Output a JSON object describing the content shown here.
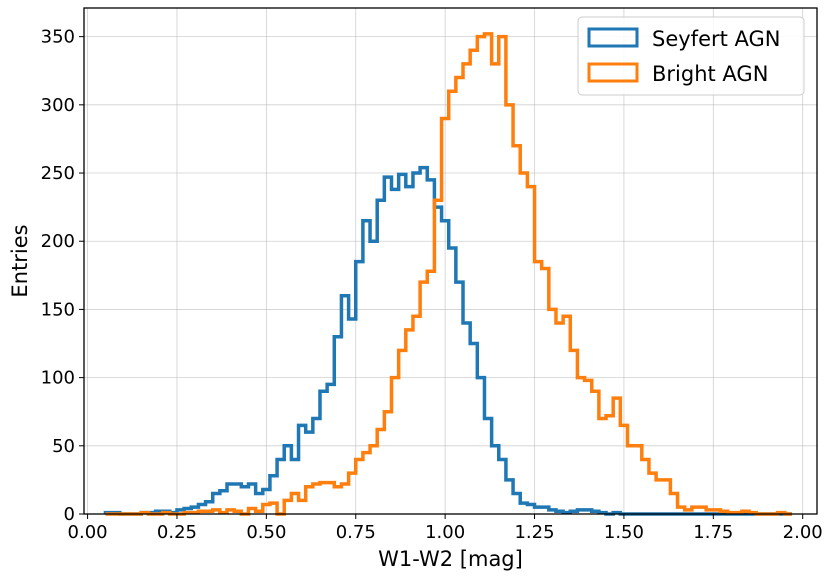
{
  "chart_data": {
    "type": "histogram",
    "xlabel": "W1-W2 [mag]",
    "ylabel": "Entries",
    "xlim": [
      -0.01,
      2.04
    ],
    "ylim": [
      0,
      371
    ],
    "xticks": [
      0.0,
      0.25,
      0.5,
      0.75,
      1.0,
      1.25,
      1.5,
      1.75,
      2.0
    ],
    "xtick_labels": [
      "0.00",
      "0.25",
      "0.50",
      "0.75",
      "1.00",
      "1.25",
      "1.50",
      "1.75",
      "2.00"
    ],
    "yticks": [
      0,
      50,
      100,
      150,
      200,
      250,
      300,
      350
    ],
    "ytick_labels": [
      "0",
      "50",
      "100",
      "150",
      "200",
      "250",
      "300",
      "350"
    ],
    "grid": true,
    "legend_position": "top-right",
    "bin_start": 0.05,
    "bin_width": 0.02,
    "series": [
      {
        "name": "Seyfert AGN",
        "color": "#1f77b4",
        "values": [
          1,
          1,
          0,
          0,
          0,
          1,
          1,
          2,
          2,
          1,
          3,
          4,
          5,
          7,
          9,
          15,
          17,
          22,
          22,
          20,
          22,
          15,
          18,
          28,
          40,
          50,
          40,
          65,
          60,
          70,
          90,
          95,
          130,
          160,
          143,
          185,
          215,
          200,
          230,
          247,
          238,
          249,
          240,
          250,
          254,
          245,
          225,
          215,
          195,
          170,
          140,
          125,
          100,
          70,
          50,
          40,
          25,
          15,
          8,
          7,
          5,
          5,
          3,
          2,
          1,
          2,
          3,
          3,
          2,
          1,
          0,
          1,
          0,
          0,
          0,
          0,
          0,
          0,
          0,
          0,
          0,
          0,
          0,
          0,
          0,
          0,
          0,
          0,
          0,
          0,
          0,
          0,
          0,
          0,
          0,
          0
        ]
      },
      {
        "name": "Bright AGN",
        "color": "#ff7f0e",
        "values": [
          0,
          0,
          0,
          0,
          0,
          1,
          0,
          0,
          1,
          0,
          0,
          1,
          1,
          2,
          2,
          3,
          1,
          3,
          2,
          0,
          4,
          2,
          7,
          8,
          0,
          10,
          15,
          10,
          20,
          22,
          23,
          23,
          20,
          22,
          30,
          40,
          45,
          50,
          62,
          75,
          100,
          120,
          135,
          145,
          170,
          178,
          230,
          290,
          310,
          320,
          330,
          340,
          350,
          352,
          330,
          350,
          300,
          270,
          250,
          240,
          185,
          180,
          150,
          140,
          145,
          120,
          100,
          98,
          90,
          70,
          72,
          85,
          65,
          50,
          50,
          40,
          30,
          25,
          25,
          15,
          5,
          3,
          5,
          5,
          3,
          3,
          2,
          1,
          1,
          2,
          1,
          0,
          0,
          0,
          1,
          0
        ]
      }
    ]
  }
}
